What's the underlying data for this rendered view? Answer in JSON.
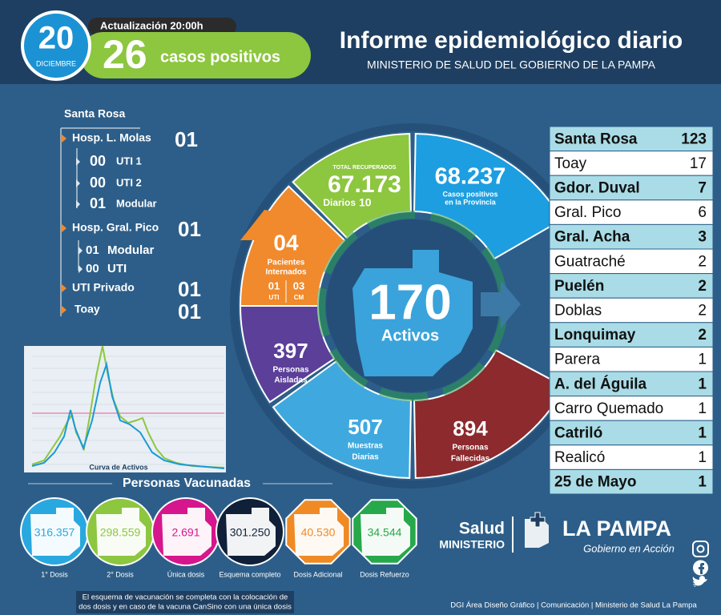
{
  "header": {
    "day": "20",
    "month": "DICIEMBRE",
    "update": "Actualización 20:00h",
    "cases": "26",
    "cases_label": "casos positivos",
    "title": "Informe epidemiológico diario",
    "subtitle": "MINISTERIO DE SALUD DEL GOBIERNO DE LA PAMPA"
  },
  "hospitals": {
    "title": "Santa Rosa",
    "items": [
      {
        "name": "Hosp. L. Molas",
        "value": "01",
        "sub": [
          {
            "value": "00",
            "name": "UTI 1"
          },
          {
            "value": "00",
            "name": "UTI 2"
          },
          {
            "value": "01",
            "name": "Modular"
          }
        ]
      },
      {
        "name": "Hosp. Gral. Pico",
        "value": "01",
        "sub": [
          {
            "value": "01",
            "name": "Modular"
          },
          {
            "value": "00",
            "name": "UTI"
          }
        ]
      },
      {
        "name": "UTI Privado",
        "value": "01"
      },
      {
        "name": "Toay",
        "value": "01"
      }
    ]
  },
  "wheel": {
    "recovered": {
      "label": "TOTAL RECUPERADOS",
      "value": "67.173",
      "daily_label": "Diarios",
      "daily": "10"
    },
    "positives": {
      "value": "68.237",
      "label": [
        "Casos positivos",
        "en la Provincia"
      ]
    },
    "hospitalized": {
      "value": "04",
      "label": [
        "Pacientes",
        "Internados"
      ],
      "uti": "01",
      "uti_label": "UTI",
      "cm": "03",
      "cm_label": "CM"
    },
    "active": {
      "value": "170",
      "label": "Activos"
    },
    "isolated": {
      "value": "397",
      "label": [
        "Personas",
        "Aisladas"
      ]
    },
    "samples": {
      "value": "507",
      "label": [
        "Muestras",
        "Diarias"
      ]
    },
    "deaths": {
      "value": "894",
      "label": [
        "Personas",
        "Fallecidas"
      ]
    }
  },
  "localities": [
    [
      "Santa Rosa",
      "123"
    ],
    [
      "Toay",
      "17"
    ],
    [
      "Gdor. Duval",
      "7"
    ],
    [
      "Gral. Pico",
      "6"
    ],
    [
      "Gral. Acha",
      "3"
    ],
    [
      "Guatraché",
      "2"
    ],
    [
      "Puelén",
      "2"
    ],
    [
      "Doblas",
      "2"
    ],
    [
      "Lonquimay",
      "2"
    ],
    [
      "Parera",
      "1"
    ],
    [
      "A. del Águila",
      "1"
    ],
    [
      "Carro Quemado",
      "1"
    ],
    [
      "Catriló",
      "1"
    ],
    [
      "Realicó",
      "1"
    ],
    [
      "25 de Mayo",
      "1"
    ]
  ],
  "curve": {
    "label": "Curva de Activos"
  },
  "vaccines": {
    "title": "Personas Vacunadas",
    "items": [
      {
        "value": "316.357",
        "label": "1° Dosis"
      },
      {
        "value": "298.559",
        "label": "2° Dosis"
      },
      {
        "value": "2.691",
        "label": "Única dosis"
      },
      {
        "value": "301.250",
        "label": "Esquema completo"
      },
      {
        "value": "40.530",
        "label": "Dosis Adicional"
      },
      {
        "value": "34.544",
        "label": "Dosis Refuerzo"
      }
    ],
    "note": [
      "El esquema de vacunación se completa con la colocación de",
      "dos dosis y en caso de la vacuna CanSino con una única dosis"
    ]
  },
  "footer": {
    "salud": "Salud",
    "ministerio": "MINISTERIO",
    "province": "LA PAMPA",
    "slogan": "Gobierno en Acción",
    "credits": "DGI Área Diseño Gráfico  | Comunicación | Ministerio de Salud La Pampa"
  }
}
